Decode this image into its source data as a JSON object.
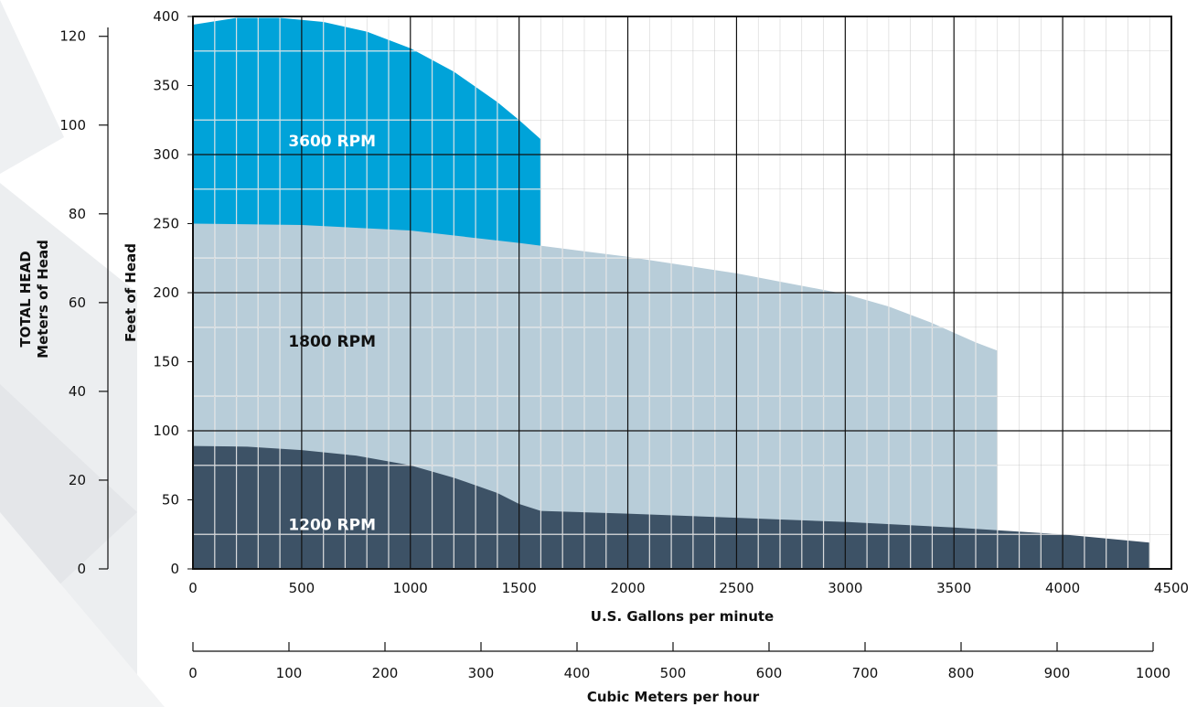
{
  "chart_data": {
    "type": "area",
    "x_axis": {
      "label": "U.S. Gallons per minute",
      "range": [
        0,
        4500
      ],
      "ticks": [
        0,
        500,
        1000,
        1500,
        2000,
        2500,
        3000,
        3500,
        4000,
        4500
      ],
      "tick_labels": [
        "0",
        "500",
        "1000",
        "1500",
        "2000",
        "2500",
        "3000",
        "3500",
        "4000",
        "4500"
      ]
    },
    "y_axis_feet": {
      "label": "Feet of Head",
      "range": [
        0,
        400
      ],
      "ticks": [
        0,
        50,
        100,
        150,
        200,
        250,
        300,
        350,
        400
      ],
      "tick_labels": [
        "0",
        "50",
        "100",
        "150",
        "200",
        "250",
        "300",
        "350",
        "400"
      ]
    },
    "y_axis_meters": {
      "title": "TOTAL HEAD",
      "label": "Meters of Head",
      "range": [
        0,
        122
      ],
      "ticks": [
        0,
        20,
        40,
        60,
        80,
        100,
        120
      ],
      "tick_labels": [
        "0",
        "20",
        "40",
        "60",
        "80",
        "100",
        "120"
      ]
    },
    "x_axis_secondary": {
      "label": "Cubic Meters per hour",
      "range": [
        0,
        1000
      ],
      "ticks": [
        0,
        100,
        200,
        300,
        400,
        500,
        600,
        700,
        800,
        900,
        1000
      ],
      "tick_labels": [
        "0",
        "100",
        "200",
        "300",
        "400",
        "500",
        "600",
        "700",
        "800",
        "900",
        "1000"
      ]
    },
    "grid": true,
    "series": [
      {
        "name": "3600 RPM",
        "color": "#00a3d9",
        "label_color": "#ffffff",
        "label_at": [
          640,
          310
        ],
        "x": [
          0,
          200,
          400,
          600,
          800,
          1000,
          1200,
          1400,
          1500,
          1600
        ],
        "y": [
          394,
          399,
          399,
          396,
          389,
          377,
          360,
          338,
          325,
          311
        ]
      },
      {
        "name": "1800 RPM",
        "color": "#b8cdd9",
        "label_color": "#111111",
        "label_at": [
          640,
          165
        ],
        "x": [
          0,
          500,
          1000,
          1500,
          2000,
          2500,
          3000,
          3200,
          3400,
          3600,
          3700
        ],
        "y": [
          250,
          249,
          245,
          236,
          226,
          214,
          199,
          190,
          178,
          164,
          158
        ]
      },
      {
        "name": "1200 RPM",
        "color": "#3d5266",
        "label_color": "#ffffff",
        "label_at": [
          640,
          32
        ],
        "x": [
          0,
          250,
          500,
          750,
          1000,
          1200,
          1400,
          1500,
          1600,
          2000,
          2500,
          3000,
          3500,
          4000,
          4400
        ],
        "y": [
          89,
          88.5,
          86,
          82,
          75,
          66,
          55,
          47,
          42,
          40,
          37,
          34,
          30,
          25,
          19
        ]
      }
    ]
  }
}
